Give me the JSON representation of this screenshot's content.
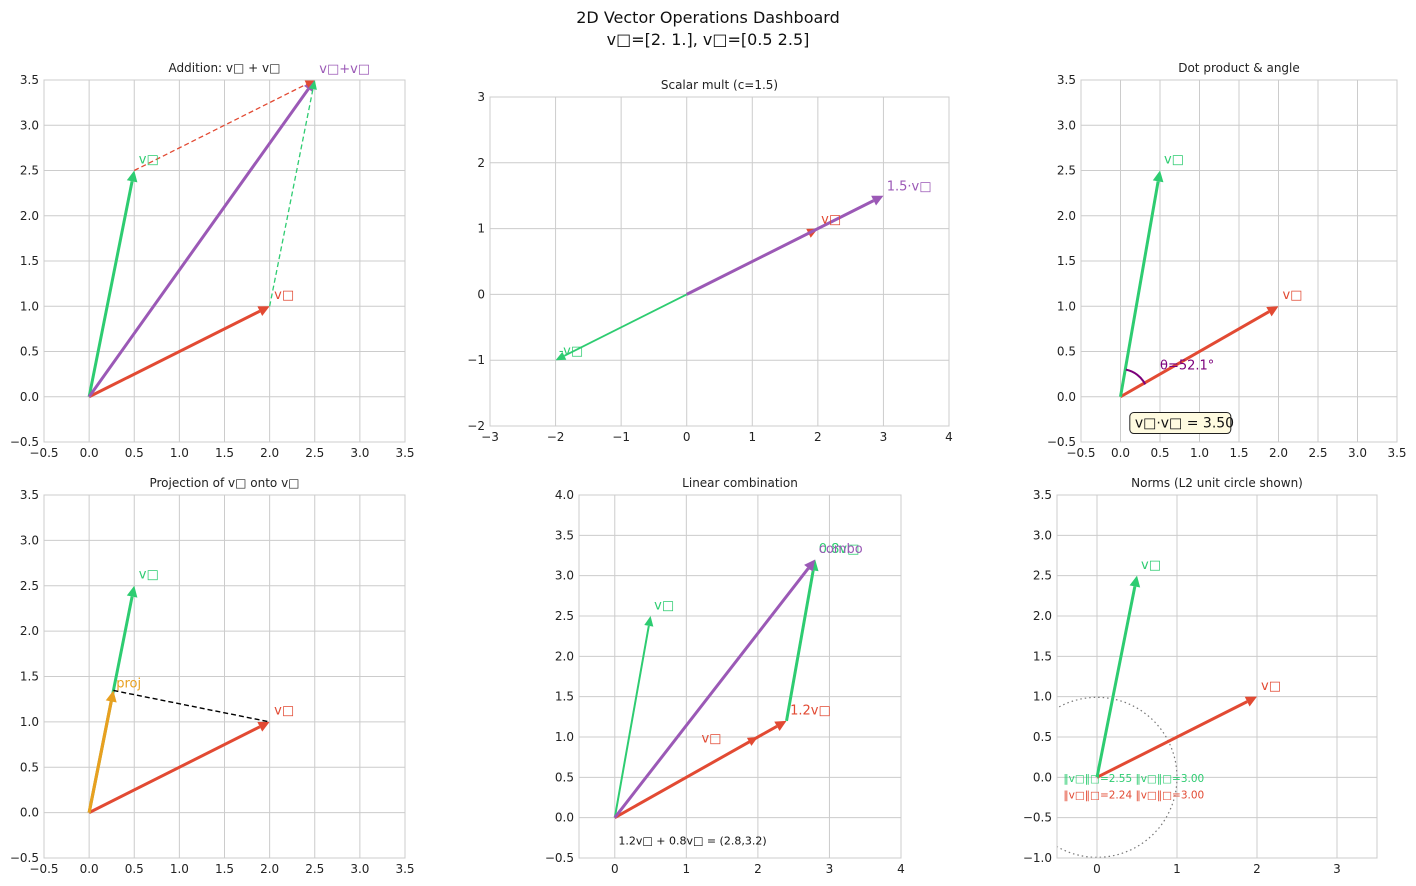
{
  "figure": {
    "title_line1": "2D Vector Operations Dashboard",
    "title_line2": "v□=[2. 1.], v□=[0.5 2.5]"
  },
  "colors": {
    "v1": "#e24a33",
    "v2": "#2ecc71",
    "res": "#9b59b6",
    "proj": "#e8a020",
    "dot": "#7b007b",
    "grid": "#cccccc",
    "frame": "#cccccc",
    "text": "#222222"
  },
  "chart_data": [
    {
      "type": "vector",
      "title": "Addition: v□ + v□",
      "xlim": [
        -0.5,
        3.5
      ],
      "ylim": [
        -0.5,
        3.5
      ],
      "xticks": [
        -0.5,
        0.0,
        0.5,
        1.0,
        1.5,
        2.0,
        2.5,
        3.0,
        3.5
      ],
      "yticks": [
        -0.5,
        0.0,
        0.5,
        1.0,
        1.5,
        2.0,
        2.5,
        3.0,
        3.5
      ],
      "tick_decimals": 1,
      "vectors": [
        {
          "from": [
            0,
            0
          ],
          "to": [
            2,
            1
          ],
          "color": "v1",
          "width": 3,
          "label": "v□",
          "label_at": [
            2.05,
            1.08
          ]
        },
        {
          "from": [
            0,
            0
          ],
          "to": [
            0.5,
            2.5
          ],
          "color": "v2",
          "width": 3,
          "label": "v□",
          "label_at": [
            0.55,
            2.58
          ]
        },
        {
          "from": [
            0,
            0
          ],
          "to": [
            2.5,
            3.5
          ],
          "color": "res",
          "width": 3,
          "label": "v□+v□",
          "label_at": [
            2.55,
            3.58
          ]
        },
        {
          "from": [
            2,
            1
          ],
          "to": [
            2.5,
            3.5
          ],
          "color": "v2",
          "width": 1.3,
          "dashed": true
        },
        {
          "from": [
            0.5,
            2.5
          ],
          "to": [
            2.5,
            3.5
          ],
          "color": "v1",
          "width": 1.3,
          "dashed": true
        }
      ]
    },
    {
      "type": "vector",
      "title": "Scalar mult (c=1.5)",
      "xlim": [
        -3,
        4
      ],
      "ylim": [
        -2,
        3
      ],
      "xticks": [
        -3,
        -2,
        -1,
        0,
        1,
        2,
        3,
        4
      ],
      "yticks": [
        -2,
        -1,
        0,
        1,
        2,
        3
      ],
      "tick_decimals": 0,
      "vectors": [
        {
          "from": [
            0,
            0
          ],
          "to": [
            2,
            1
          ],
          "color": "v1",
          "width": 2.5,
          "label": "v□",
          "label_at": [
            2.05,
            1.08
          ]
        },
        {
          "from": [
            0,
            0
          ],
          "to": [
            3,
            1.5
          ],
          "color": "res",
          "width": 3,
          "label": "1.5·v□",
          "label_at": [
            3.05,
            1.58
          ]
        },
        {
          "from": [
            0,
            0
          ],
          "to": [
            -2,
            -1
          ],
          "color": "v2",
          "width": 1.8,
          "label": "-v□",
          "label_at": [
            -1.95,
            -0.92
          ]
        }
      ]
    },
    {
      "type": "vector",
      "title": "Dot product & angle",
      "xlim": [
        -0.5,
        3.5
      ],
      "ylim": [
        -0.5,
        3.5
      ],
      "xticks": [
        -0.5,
        0.0,
        0.5,
        1.0,
        1.5,
        2.0,
        2.5,
        3.0,
        3.5
      ],
      "yticks": [
        -0.5,
        0.0,
        0.5,
        1.0,
        1.5,
        2.0,
        2.5,
        3.0,
        3.5
      ],
      "tick_decimals": 1,
      "vectors": [
        {
          "from": [
            0,
            0
          ],
          "to": [
            2,
            1
          ],
          "color": "v1",
          "width": 3,
          "label": "v□",
          "label_at": [
            2.05,
            1.08
          ]
        },
        {
          "from": [
            0,
            0
          ],
          "to": [
            0.5,
            2.5
          ],
          "color": "v2",
          "width": 3,
          "label": "v□",
          "label_at": [
            0.55,
            2.58
          ]
        }
      ],
      "arc": {
        "radius": 0.35,
        "from_deg": 26.57,
        "to_deg": 78.69,
        "color": "dot"
      },
      "angle_label": {
        "text": "θ=52.1°",
        "at": [
          0.5,
          0.3
        ],
        "color": "dot"
      },
      "dot_box": {
        "text": "v□·v□ = 3.50",
        "at": [
          0.08,
          -0.34
        ]
      }
    },
    {
      "type": "vector",
      "title": "Projection of v□ onto v□",
      "xlim": [
        -0.5,
        3.5
      ],
      "ylim": [
        -0.5,
        3.5
      ],
      "xticks": [
        -0.5,
        0.0,
        0.5,
        1.0,
        1.5,
        2.0,
        2.5,
        3.0,
        3.5
      ],
      "yticks": [
        -0.5,
        0.0,
        0.5,
        1.0,
        1.5,
        2.0,
        2.5,
        3.0,
        3.5
      ],
      "tick_decimals": 1,
      "vectors": [
        {
          "from": [
            0,
            0
          ],
          "to": [
            2,
            1
          ],
          "color": "v1",
          "width": 3,
          "label": "v□",
          "label_at": [
            2.05,
            1.08
          ]
        },
        {
          "from": [
            0,
            0
          ],
          "to": [
            0.5,
            2.5
          ],
          "color": "v2",
          "width": 3,
          "label": "v□",
          "label_at": [
            0.55,
            2.58
          ]
        },
        {
          "from": [
            0,
            0
          ],
          "to": [
            0.269,
            1.346
          ],
          "color": "proj",
          "width": 3.2,
          "label": "proj",
          "label_at": [
            0.3,
            1.38
          ]
        },
        {
          "from": [
            0.269,
            1.346
          ],
          "to": [
            2,
            1
          ],
          "color": "#000000",
          "width": 1.4,
          "dashed": true,
          "noarrow": true
        }
      ]
    },
    {
      "type": "vector",
      "title": "Linear combination",
      "xlim": [
        -0.5,
        4
      ],
      "ylim": [
        -0.5,
        4
      ],
      "xticks": [
        0,
        1,
        2,
        3,
        4
      ],
      "yticks": [
        -0.5,
        0.0,
        0.5,
        1.0,
        1.5,
        2.0,
        2.5,
        3.0,
        3.5,
        4.0
      ],
      "tick_decimals_x": 0,
      "tick_decimals": 1,
      "vectors": [
        {
          "from": [
            0,
            0
          ],
          "to": [
            2,
            1
          ],
          "color": "v1",
          "width": 2,
          "label": "v□",
          "label_at": [
            2.05,
            1.08
          ],
          "label_dx": -60,
          "label_dy": 12
        },
        {
          "from": [
            0,
            0
          ],
          "to": [
            0.5,
            2.5
          ],
          "color": "v2",
          "width": 2,
          "label": "v□",
          "label_at": [
            0.55,
            2.58
          ]
        },
        {
          "from": [
            0,
            0
          ],
          "to": [
            2.4,
            1.2
          ],
          "color": "v1",
          "width": 3,
          "label": "1.2v□",
          "label_at": [
            2.45,
            1.28
          ]
        },
        {
          "from": [
            2.4,
            1.2
          ],
          "to": [
            2.8,
            3.2
          ],
          "color": "v2",
          "width": 3,
          "label": "0.8v□",
          "label_at": [
            2.85,
            3.28
          ]
        },
        {
          "from": [
            0,
            0
          ],
          "to": [
            2.8,
            3.2
          ],
          "color": "res",
          "width": 3,
          "label": "combo",
          "label_at": [
            2.85,
            3.28
          ]
        }
      ],
      "note": {
        "text": "1.2v□ + 0.8v□ = (2.8,3.2)",
        "at": [
          0.05,
          -0.33
        ]
      }
    },
    {
      "type": "vector",
      "title": "Norms (L2 unit circle shown)",
      "xlim": [
        -0.5,
        3.5
      ],
      "ylim": [
        -1,
        3.5
      ],
      "xticks": [
        0,
        1,
        2,
        3
      ],
      "yticks": [
        -1.0,
        -0.5,
        0.0,
        0.5,
        1.0,
        1.5,
        2.0,
        2.5,
        3.0,
        3.5
      ],
      "tick_decimals_x": 0,
      "tick_decimals": 1,
      "vectors": [
        {
          "from": [
            0,
            0
          ],
          "to": [
            2,
            1
          ],
          "color": "v1",
          "width": 3,
          "label": "v□",
          "label_at": [
            2.05,
            1.08
          ]
        },
        {
          "from": [
            0,
            0
          ],
          "to": [
            0.5,
            2.5
          ],
          "color": "v2",
          "width": 3,
          "label": "v□",
          "label_at": [
            0.55,
            2.58
          ]
        }
      ],
      "unit_circle": {
        "r": 1
      },
      "norm_labels": [
        {
          "text": "‖v□‖□=2.55  ‖v□‖□=3.00",
          "at": [
            -0.42,
            -0.06
          ],
          "color": "v2"
        },
        {
          "text": "‖v□‖□=2.24  ‖v□‖□=3.00",
          "at": [
            -0.42,
            -0.26
          ],
          "color": "v1"
        }
      ]
    }
  ]
}
